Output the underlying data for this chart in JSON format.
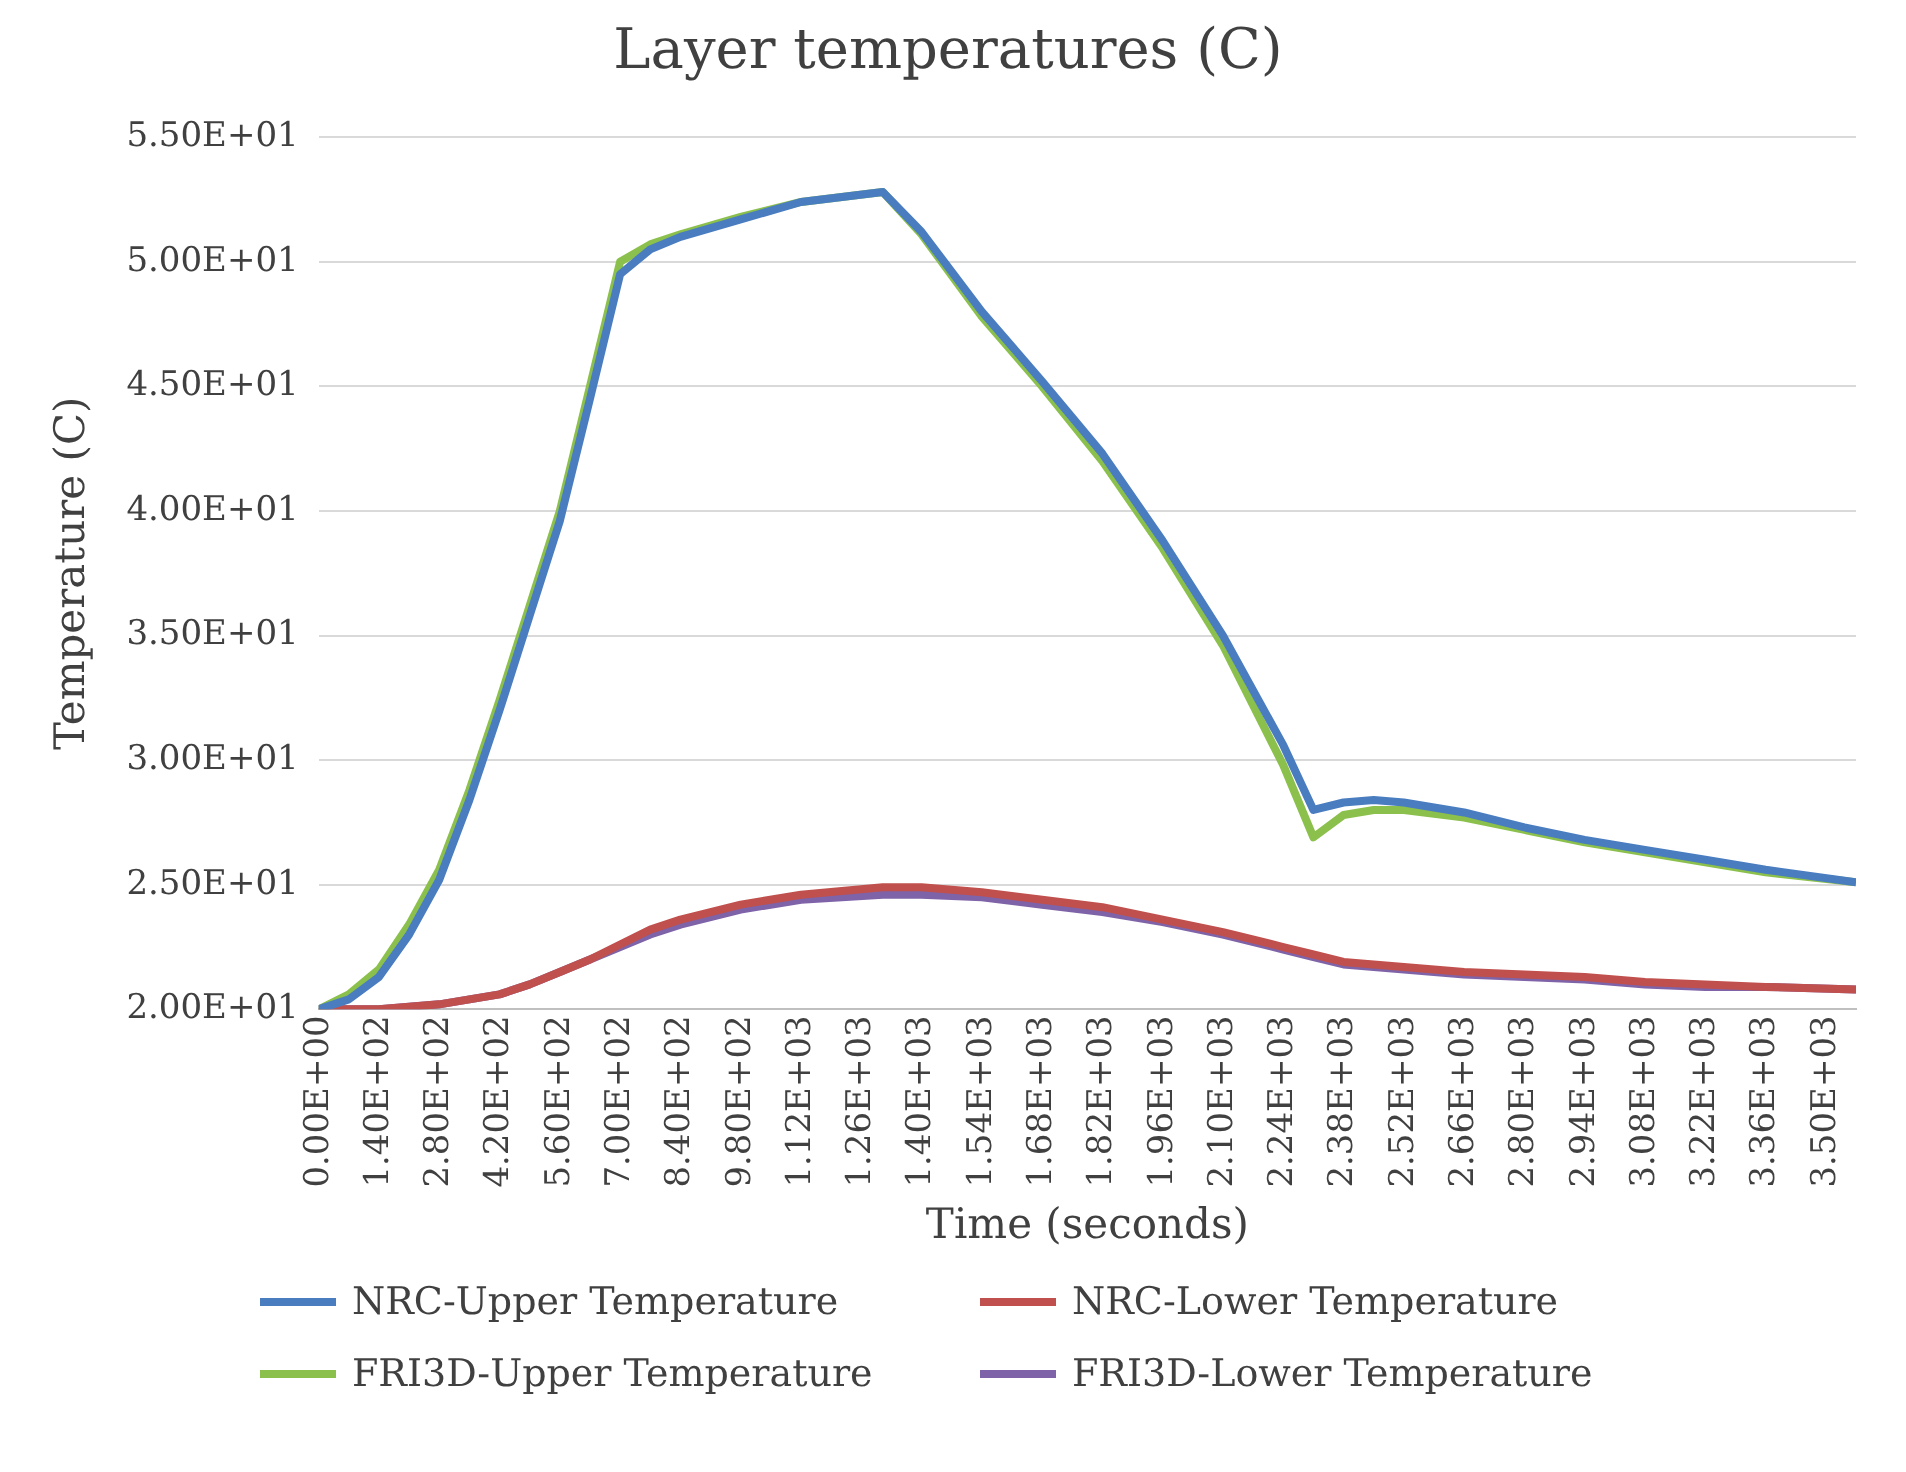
{
  "chart_data": {
    "type": "line",
    "title": "Layer temperatures (C)",
    "xlabel": "Time (seconds)",
    "ylabel": "Temperature (C)",
    "xlim": [
      0,
      3570
    ],
    "xticks": [
      {
        "value": 0,
        "label": "0.00E+00"
      },
      {
        "value": 140,
        "label": "1.40E+02"
      },
      {
        "value": 280,
        "label": "2.80E+02"
      },
      {
        "value": 420,
        "label": "4.20E+02"
      },
      {
        "value": 560,
        "label": "5.60E+02"
      },
      {
        "value": 700,
        "label": "7.00E+02"
      },
      {
        "value": 840,
        "label": "8.40E+02"
      },
      {
        "value": 980,
        "label": "9.80E+02"
      },
      {
        "value": 1120,
        "label": "1.12E+03"
      },
      {
        "value": 1260,
        "label": "1.26E+03"
      },
      {
        "value": 1400,
        "label": "1.40E+03"
      },
      {
        "value": 1540,
        "label": "1.54E+03"
      },
      {
        "value": 1680,
        "label": "1.68E+03"
      },
      {
        "value": 1820,
        "label": "1.82E+03"
      },
      {
        "value": 1960,
        "label": "1.96E+03"
      },
      {
        "value": 2100,
        "label": "2.10E+03"
      },
      {
        "value": 2240,
        "label": "2.24E+03"
      },
      {
        "value": 2380,
        "label": "2.38E+03"
      },
      {
        "value": 2520,
        "label": "2.52E+03"
      },
      {
        "value": 2660,
        "label": "2.66E+03"
      },
      {
        "value": 2800,
        "label": "2.80E+03"
      },
      {
        "value": 2940,
        "label": "2.94E+03"
      },
      {
        "value": 3080,
        "label": "3.08E+03"
      },
      {
        "value": 3220,
        "label": "3.22E+03"
      },
      {
        "value": 3360,
        "label": "3.36E+03"
      },
      {
        "value": 3500,
        "label": "3.50E+03"
      }
    ],
    "ylim": [
      20,
      55
    ],
    "yticks": [
      {
        "value": 20,
        "label": "2.00E+01"
      },
      {
        "value": 25,
        "label": "2.50E+01"
      },
      {
        "value": 30,
        "label": "3.00E+01"
      },
      {
        "value": 35,
        "label": "3.50E+01"
      },
      {
        "value": 40,
        "label": "4.00E+01"
      },
      {
        "value": 45,
        "label": "4.50E+01"
      },
      {
        "value": 50,
        "label": "5.00E+01"
      },
      {
        "value": 55,
        "label": "5.50E+01"
      }
    ],
    "grid": "y",
    "legend": "bottom",
    "marker": "none",
    "line_style": "solid",
    "x": [
      0,
      70,
      140,
      210,
      280,
      350,
      420,
      490,
      560,
      630,
      700,
      770,
      840,
      980,
      1120,
      1310,
      1400,
      1540,
      1680,
      1820,
      1960,
      2100,
      2240,
      2310,
      2380,
      2450,
      2520,
      2660,
      2800,
      2940,
      3080,
      3220,
      3360,
      3570
    ],
    "series": [
      {
        "name": "NRC-Upper Temperature",
        "color": "#4a7dc0",
        "values": [
          20.0,
          20.4,
          21.3,
          23.0,
          25.2,
          28.4,
          32.0,
          35.8,
          39.6,
          44.5,
          49.5,
          50.5,
          51.0,
          51.7,
          52.4,
          52.8,
          51.2,
          48.0,
          45.2,
          42.3,
          38.8,
          35.0,
          30.6,
          28.0,
          28.3,
          28.4,
          28.3,
          27.9,
          27.3,
          26.8,
          26.4,
          26.0,
          25.6,
          25.1
        ]
      },
      {
        "name": "NRC-Lower Temperature",
        "color": "#c0504d",
        "values": [
          20.0,
          20.0,
          20.0,
          20.1,
          20.2,
          20.4,
          20.6,
          21.0,
          21.5,
          22.0,
          22.6,
          23.2,
          23.6,
          24.2,
          24.6,
          24.9,
          24.9,
          24.7,
          24.4,
          24.1,
          23.6,
          23.1,
          22.5,
          22.2,
          21.9,
          21.8,
          21.7,
          21.5,
          21.4,
          21.3,
          21.1,
          21.0,
          20.9,
          20.8
        ]
      },
      {
        "name": "FRI3D-Upper Temperature",
        "color": "#8cc04d",
        "values": [
          20.0,
          20.6,
          21.6,
          23.4,
          25.6,
          28.8,
          32.4,
          36.2,
          40.0,
          45.0,
          50.0,
          50.7,
          51.1,
          51.8,
          52.4,
          52.8,
          51.1,
          47.8,
          45.0,
          42.0,
          38.5,
          34.6,
          29.8,
          26.9,
          27.8,
          28.0,
          28.0,
          27.7,
          27.2,
          26.7,
          26.3,
          25.9,
          25.5,
          25.1
        ]
      },
      {
        "name": "FRI3D-Lower Temperature",
        "color": "#7f63a8",
        "values": [
          20.0,
          20.0,
          20.0,
          20.1,
          20.2,
          20.4,
          20.6,
          21.0,
          21.5,
          22.0,
          22.5,
          23.0,
          23.4,
          24.0,
          24.4,
          24.6,
          24.6,
          24.5,
          24.2,
          23.9,
          23.5,
          23.0,
          22.4,
          22.1,
          21.8,
          21.7,
          21.6,
          21.4,
          21.3,
          21.2,
          21.0,
          20.9,
          20.9,
          20.8
        ]
      }
    ]
  }
}
